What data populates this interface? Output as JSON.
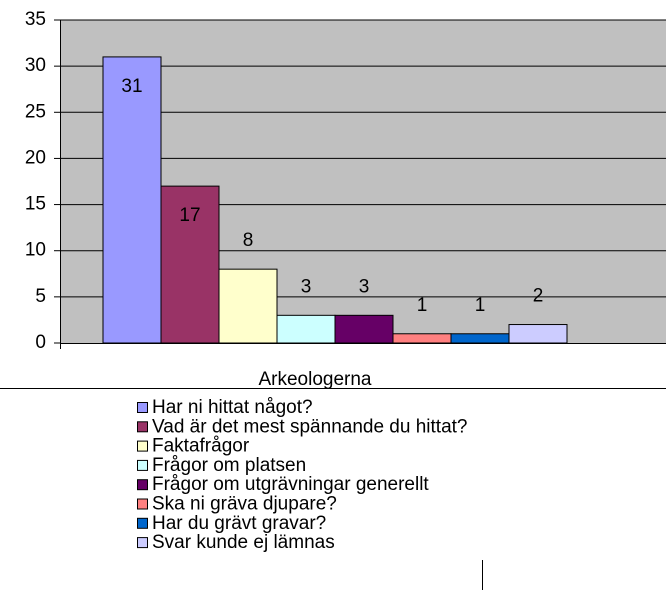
{
  "chart_data": {
    "type": "bar",
    "categories": [
      "Arkeologerna"
    ],
    "series": [
      {
        "name": "Har ni hittat något?",
        "color": "#9999ff",
        "values": [
          31
        ]
      },
      {
        "name": "Vad är det mest spännande du hittat?",
        "color": "#993366",
        "values": [
          17
        ]
      },
      {
        "name": "Faktafrågor",
        "color": "#ffffcc",
        "values": [
          8
        ]
      },
      {
        "name": "Frågor om platsen",
        "color": "#ccffff",
        "values": [
          3
        ]
      },
      {
        "name": "Frågor om utgrävningar generellt",
        "color": "#660066",
        "values": [
          3
        ]
      },
      {
        "name": "Ska ni gräva djupare?",
        "color": "#ff8080",
        "values": [
          1
        ]
      },
      {
        "name": "Har du grävt gravar?",
        "color": "#0066cc",
        "values": [
          1
        ]
      },
      {
        "name": "Svar kunde ej lämnas",
        "color": "#ccccff",
        "values": [
          2
        ]
      }
    ],
    "ylim": [
      0,
      35
    ],
    "yticks": [
      0,
      5,
      10,
      15,
      20,
      25,
      30,
      35
    ],
    "grid": true
  }
}
